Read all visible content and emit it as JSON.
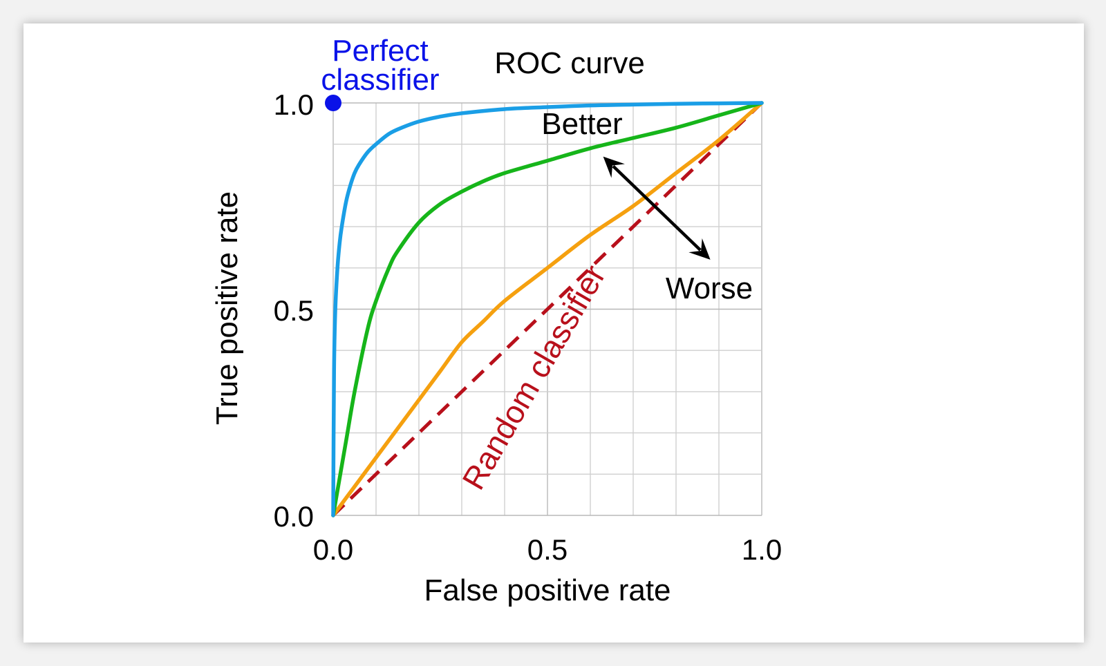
{
  "chart_data": {
    "type": "line",
    "title": "ROC curve",
    "xlabel": "False positive rate",
    "ylabel": "True positive rate",
    "xlim": [
      0,
      1
    ],
    "ylim": [
      0,
      1
    ],
    "x_ticks": [
      "0.0",
      "0.5",
      "1.0"
    ],
    "y_ticks": [
      "0.0",
      "0.5",
      "1.0"
    ],
    "grid": true,
    "grid_step": 0.1,
    "series": [
      {
        "color": "#1a9ee6",
        "style": "solid",
        "x": [
          0,
          0.002,
          0.005,
          0.01,
          0.015,
          0.02,
          0.03,
          0.04,
          0.05,
          0.06,
          0.08,
          0.1,
          0.13,
          0.16,
          0.2,
          0.25,
          0.3,
          0.4,
          0.5,
          0.6,
          0.7,
          0.8,
          0.9,
          1.0
        ],
        "y": [
          0,
          0.35,
          0.5,
          0.6,
          0.66,
          0.7,
          0.76,
          0.8,
          0.83,
          0.85,
          0.88,
          0.9,
          0.925,
          0.94,
          0.955,
          0.967,
          0.975,
          0.985,
          0.99,
          0.994,
          0.996,
          0.998,
          0.999,
          1.0
        ]
      },
      {
        "color": "#16b51a",
        "style": "solid",
        "x": [
          0,
          0.03,
          0.05,
          0.08,
          0.1,
          0.13,
          0.15,
          0.2,
          0.25,
          0.3,
          0.35,
          0.4,
          0.5,
          0.6,
          0.7,
          0.8,
          0.9,
          1.0
        ],
        "y": [
          0,
          0.18,
          0.3,
          0.45,
          0.52,
          0.6,
          0.64,
          0.71,
          0.755,
          0.785,
          0.81,
          0.83,
          0.86,
          0.89,
          0.915,
          0.94,
          0.97,
          1.0
        ]
      },
      {
        "color": "#f5a00f",
        "style": "solid",
        "x": [
          0,
          0.05,
          0.1,
          0.15,
          0.2,
          0.25,
          0.3,
          0.35,
          0.4,
          0.5,
          0.6,
          0.7,
          0.8,
          0.9,
          1.0
        ],
        "y": [
          0,
          0.07,
          0.14,
          0.21,
          0.28,
          0.35,
          0.42,
          0.47,
          0.52,
          0.6,
          0.68,
          0.75,
          0.83,
          0.91,
          1.0
        ]
      },
      {
        "color": "#b8101b",
        "style": "dashed",
        "x": [
          0,
          1
        ],
        "y": [
          0,
          1
        ]
      }
    ],
    "points": [
      {
        "x": 0,
        "y": 1,
        "color": "#0a12e8"
      }
    ],
    "annotations": {
      "perfect_line1": "Perfect",
      "perfect_line2": "classifier",
      "better": "Better",
      "worse": "Worse",
      "random": "Random classifier"
    },
    "annotation_colors": {
      "perfect": "#0a12e8",
      "random": "#b8101b",
      "default": "#000000"
    },
    "arrow": {
      "from": [
        0.63,
        0.87
      ],
      "to": [
        0.88,
        0.62
      ],
      "style": "double-headed"
    }
  }
}
